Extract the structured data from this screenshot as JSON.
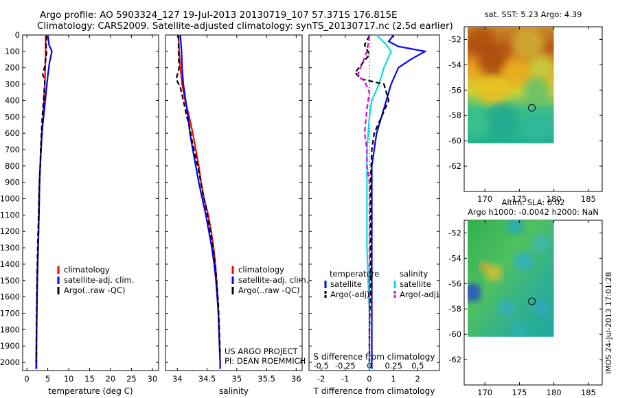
{
  "header": {
    "line1": "Argo profile: AO 5903324_127 19-Jul-2013 20130719_107 57.371S 176.815E",
    "line2": "Climatology: CARS2009. Satellite-adjusted climatology: synTS_20130717.nc (2.5d earlier)"
  },
  "colors": {
    "climatology": "#ff0000",
    "satellite_adj": "#0000ff",
    "argo": "#000000",
    "sat_salinity": "#00e0e0",
    "argo_adj_salinity": "#e000e0"
  },
  "chart_data": [
    {
      "type": "line",
      "name": "temperature-profile",
      "xlabel": "temperature (deg C)",
      "ylabel": "",
      "xlim": [
        -1,
        31.5
      ],
      "ylim": [
        2050,
        0
      ],
      "xticks": [
        "0",
        "5",
        "10",
        "15",
        "20",
        "25",
        "30"
      ],
      "yticks": [
        "0",
        "100",
        "200",
        "300",
        "400",
        "500",
        "600",
        "700",
        "800",
        "900",
        "1000",
        "1100",
        "1200",
        "1300",
        "1400",
        "1500",
        "1600",
        "1700",
        "1800",
        "1900",
        "2000"
      ],
      "legend": [
        "climatology",
        "satellite-adj. clim.",
        "Argo(..raw -QC)"
      ],
      "series": [
        {
          "name": "climatology",
          "style": "solid",
          "color": "#ff0000",
          "points": [
            [
              4.5,
              0
            ],
            [
              4.5,
              100
            ],
            [
              4.4,
              200
            ],
            [
              4.3,
              300
            ],
            [
              4.1,
              400
            ],
            [
              3.9,
              500
            ],
            [
              3.6,
              600
            ],
            [
              3.4,
              700
            ],
            [
              3.2,
              800
            ],
            [
              3.0,
              900
            ],
            [
              2.9,
              1000
            ],
            [
              2.8,
              1200
            ],
            [
              2.6,
              1400
            ],
            [
              2.4,
              1600
            ],
            [
              2.3,
              1800
            ],
            [
              2.2,
              2000
            ],
            [
              2.2,
              2040
            ]
          ]
        },
        {
          "name": "satellite-adj. clim.",
          "style": "solid",
          "color": "#0000ff",
          "points": [
            [
              5.0,
              0
            ],
            [
              5.3,
              60
            ],
            [
              6.0,
              100
            ],
            [
              5.4,
              170
            ],
            [
              5.0,
              250
            ],
            [
              4.6,
              350
            ],
            [
              4.2,
              450
            ],
            [
              3.8,
              550
            ],
            [
              3.5,
              650
            ],
            [
              3.3,
              750
            ],
            [
              3.1,
              850
            ],
            [
              3.0,
              950
            ],
            [
              2.9,
              1100
            ],
            [
              2.7,
              1300
            ],
            [
              2.5,
              1500
            ],
            [
              2.4,
              1700
            ],
            [
              2.3,
              1900
            ],
            [
              2.3,
              2040
            ]
          ]
        },
        {
          "name": "Argo(..raw -QC)",
          "style": "dashed",
          "color": "#000000",
          "points": [
            [
              4.7,
              5
            ],
            [
              4.6,
              60
            ],
            [
              4.7,
              120
            ],
            [
              4.2,
              200
            ],
            [
              3.8,
              240
            ],
            [
              4.3,
              280
            ],
            [
              4.0,
              400
            ],
            [
              3.7,
              500
            ],
            [
              3.5,
              600
            ],
            [
              3.3,
              700
            ],
            [
              3.2,
              800
            ],
            [
              3.0,
              900
            ],
            [
              2.9,
              1000
            ],
            [
              2.7,
              1200
            ],
            [
              2.5,
              1400
            ],
            [
              2.4,
              1600
            ],
            [
              2.3,
              1800
            ],
            [
              2.3,
              2000
            ]
          ]
        }
      ]
    },
    {
      "type": "line",
      "name": "salinity-profile",
      "xlabel": "salinity",
      "ylabel": "",
      "xlim": [
        33.8,
        36.1
      ],
      "ylim": [
        2050,
        0
      ],
      "xticks": [
        "34",
        "34.5",
        "35",
        "35.5",
        "36"
      ],
      "legend": [
        "climatology",
        "satellite-adj. clim.",
        "Argo(..raw -QC)"
      ],
      "annotation": [
        "US ARGO PROJECT",
        "PI: DEAN ROEMMICH"
      ],
      "series": [
        {
          "name": "climatology",
          "style": "solid",
          "color": "#ff0000",
          "points": [
            [
              34.02,
              0
            ],
            [
              34.03,
              100
            ],
            [
              34.05,
              200
            ],
            [
              34.08,
              300
            ],
            [
              34.13,
              400
            ],
            [
              34.2,
              500
            ],
            [
              34.26,
              600
            ],
            [
              34.31,
              700
            ],
            [
              34.36,
              800
            ],
            [
              34.4,
              900
            ],
            [
              34.45,
              1000
            ],
            [
              34.52,
              1100
            ],
            [
              34.57,
              1200
            ],
            [
              34.61,
              1300
            ],
            [
              34.64,
              1400
            ],
            [
              34.66,
              1500
            ],
            [
              34.68,
              1600
            ],
            [
              34.69,
              1700
            ],
            [
              34.7,
              1800
            ],
            [
              34.71,
              1900
            ],
            [
              34.72,
              2000
            ],
            [
              34.72,
              2040
            ]
          ]
        },
        {
          "name": "satellite-adj. clim.",
          "style": "solid",
          "color": "#0000ff",
          "points": [
            [
              34.05,
              0
            ],
            [
              34.07,
              100
            ],
            [
              34.08,
              200
            ],
            [
              34.1,
              300
            ],
            [
              34.14,
              400
            ],
            [
              34.18,
              500
            ],
            [
              34.21,
              600
            ],
            [
              34.26,
              700
            ],
            [
              34.31,
              800
            ],
            [
              34.36,
              900
            ],
            [
              34.42,
              1000
            ],
            [
              34.48,
              1100
            ],
            [
              34.53,
              1200
            ],
            [
              34.58,
              1300
            ],
            [
              34.62,
              1400
            ],
            [
              34.65,
              1500
            ],
            [
              34.67,
              1600
            ],
            [
              34.69,
              1700
            ],
            [
              34.7,
              1800
            ],
            [
              34.71,
              1900
            ],
            [
              34.72,
              2000
            ],
            [
              34.72,
              2040
            ]
          ]
        },
        {
          "name": "Argo(..raw -QC)",
          "style": "dashed",
          "color": "#000000",
          "points": [
            [
              34.02,
              5
            ],
            [
              34.02,
              100
            ],
            [
              34.03,
              200
            ],
            [
              33.98,
              270
            ],
            [
              34.05,
              320
            ],
            [
              34.1,
              400
            ],
            [
              34.16,
              500
            ],
            [
              34.2,
              550
            ],
            [
              34.25,
              650
            ],
            [
              34.31,
              750
            ],
            [
              34.37,
              850
            ],
            [
              34.42,
              950
            ],
            [
              34.48,
              1050
            ],
            [
              34.53,
              1150
            ],
            [
              34.58,
              1250
            ],
            [
              34.62,
              1350
            ],
            [
              34.65,
              1450
            ],
            [
              34.67,
              1550
            ],
            [
              34.69,
              1650
            ],
            [
              34.7,
              1750
            ],
            [
              34.71,
              1850
            ],
            [
              34.72,
              1950
            ]
          ]
        }
      ]
    },
    {
      "type": "line",
      "name": "difference-profile",
      "xlabel": "T difference from climatology",
      "xlabel_top": "S difference from climatology",
      "ylabel": "",
      "xlim": [
        -2.5,
        2.9
      ],
      "ylim": [
        2050,
        0
      ],
      "xticks": [
        "-2",
        "-1",
        "0",
        "1",
        "2"
      ],
      "xticks_top": [
        "-0.5",
        "-0.25",
        "0",
        "0.25",
        "0.5"
      ],
      "legend": {
        "temperature_title": "temperature",
        "salinity_title": "salinity",
        "items": [
          "satellite",
          "Argo(-adj)",
          "satellite",
          "Argo(-adj)"
        ]
      },
      "series": [
        {
          "name": "satellite",
          "group": "temperature",
          "style": "solid",
          "color": "#0000ff",
          "points": [
            [
              1.0,
              0
            ],
            [
              0.8,
              40
            ],
            [
              1.2,
              70
            ],
            [
              2.3,
              100
            ],
            [
              1.7,
              150
            ],
            [
              1.2,
              200
            ],
            [
              0.9,
              300
            ],
            [
              0.7,
              400
            ],
            [
              0.5,
              500
            ],
            [
              0.3,
              600
            ],
            [
              0.2,
              700
            ],
            [
              0.1,
              800
            ],
            [
              0.1,
              1000
            ],
            [
              0.1,
              1200
            ],
            [
              0.1,
              1500
            ],
            [
              0.1,
              1800
            ],
            [
              0.1,
              2040
            ]
          ]
        },
        {
          "name": "satellite",
          "group": "salinity",
          "style": "solid",
          "color": "#00e0e0",
          "points": [
            [
              0.3,
              0
            ],
            [
              0.7,
              60
            ],
            [
              0.9,
              100
            ],
            [
              0.6,
              200
            ],
            [
              0.4,
              300
            ],
            [
              0.1,
              400
            ],
            [
              0.0,
              500
            ],
            [
              -0.1,
              700
            ],
            [
              -0.1,
              900
            ],
            [
              -0.1,
              1100
            ],
            [
              -0.1,
              1300
            ],
            [
              -0.05,
              1500
            ],
            [
              0.0,
              1700
            ],
            [
              0.0,
              1900
            ],
            [
              0.0,
              2040
            ]
          ]
        },
        {
          "name": "Argo(-adj)",
          "group": "temperature",
          "style": "dashed",
          "color": "#000000",
          "points": [
            [
              0.0,
              5
            ],
            [
              -0.2,
              60
            ],
            [
              0.0,
              120
            ],
            [
              -0.6,
              230
            ],
            [
              -0.3,
              270
            ],
            [
              0.6,
              300
            ],
            [
              0.8,
              400
            ],
            [
              0.5,
              500
            ],
            [
              0.2,
              600
            ],
            [
              0.1,
              700
            ],
            [
              0.05,
              900
            ],
            [
              0.05,
              1200
            ],
            [
              0.05,
              1500
            ],
            [
              0.0,
              1800
            ],
            [
              0.0,
              2000
            ]
          ]
        },
        {
          "name": "Argo(-adj)",
          "group": "salinity",
          "style": "dashed",
          "color": "#e000e0",
          "points": [
            [
              0.0,
              5
            ],
            [
              -0.1,
              100
            ],
            [
              -0.5,
              250
            ],
            [
              -0.2,
              280
            ],
            [
              0.0,
              350
            ],
            [
              -0.1,
              450
            ],
            [
              -0.2,
              600
            ],
            [
              -0.1,
              700
            ],
            [
              -0.1,
              800
            ],
            [
              0.0,
              900
            ],
            [
              0.0,
              1100
            ],
            [
              0.0,
              1400
            ],
            [
              0.0,
              1700
            ],
            [
              0.0,
              2000
            ]
          ]
        }
      ]
    },
    {
      "type": "heatmap",
      "name": "sst-map",
      "title": "sat. SST: 5.23 Argo: 4.39",
      "xlim": [
        167,
        187
      ],
      "ylim": [
        -64,
        -51
      ],
      "xticks": [
        "170",
        "175",
        "180",
        "185"
      ],
      "yticks": [
        "-52",
        "-54",
        "-56",
        "-58",
        "-60",
        "-62"
      ],
      "argo_position": [
        176.8,
        -57.4
      ],
      "data_extent": {
        "lon": [
          167.5,
          180
        ],
        "lat": [
          -60.2,
          -51
        ]
      }
    },
    {
      "type": "heatmap",
      "name": "sla-map",
      "title": "Altim. SLA: 0.02",
      "subtitle": "Argo h1000: -0.0042 h2000: NaN",
      "xlim": [
        167,
        187
      ],
      "ylim": [
        -64,
        -51
      ],
      "xticks": [
        "170",
        "175",
        "180",
        "185"
      ],
      "yticks": [
        "-52",
        "-54",
        "-56",
        "-58",
        "-60",
        "-62"
      ],
      "argo_position": [
        176.8,
        -57.4
      ],
      "data_extent": {
        "lon": [
          167.5,
          180
        ],
        "lat": [
          -60.2,
          -51
        ]
      }
    }
  ],
  "footer": {
    "stamp": "IMOS 24-Jul-2013 17:01:28"
  }
}
